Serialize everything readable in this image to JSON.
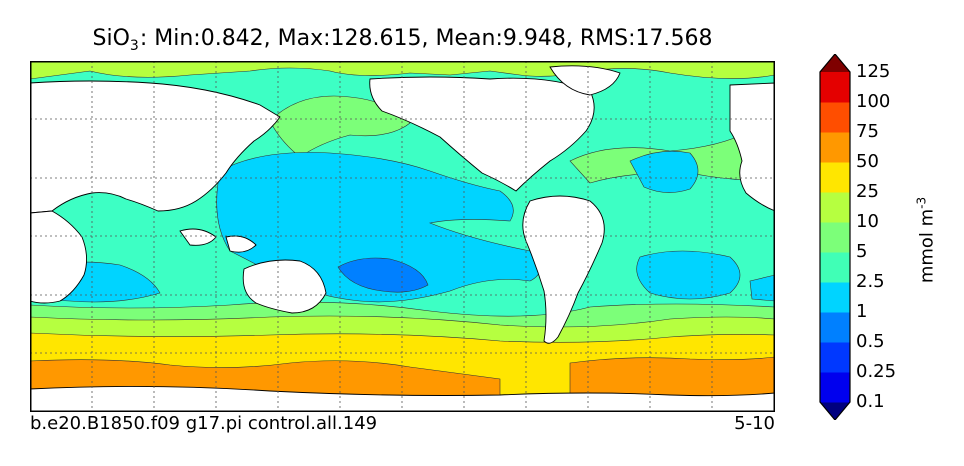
{
  "title": {
    "prefix": "SiO",
    "subscript": "3",
    "rest": ": Min:0.842, Max:128.615, Mean:9.948, RMS:17.568"
  },
  "footer": {
    "case": "b.e20.B1850.f09 g17.pi control.all.149",
    "period": "5-10"
  },
  "colorbar": {
    "units_base": "mmol m",
    "units_exp": "-3",
    "levels": [
      "0.1",
      "0.25",
      "0.5",
      "1",
      "2.5",
      "5",
      "10",
      "25",
      "50",
      "75",
      "100",
      "125"
    ],
    "colors": [
      "#00007f",
      "#0000ee",
      "#0038ff",
      "#0080ff",
      "#00d4ff",
      "#40ffb6",
      "#7cff79",
      "#b6ff40",
      "#ffe600",
      "#ff9800",
      "#ff4e00",
      "#e40000",
      "#7f0000"
    ]
  },
  "map": {
    "ocean_background": "#3dffc4",
    "land_color": "#ffffff",
    "gridlines": "dotted"
  }
}
